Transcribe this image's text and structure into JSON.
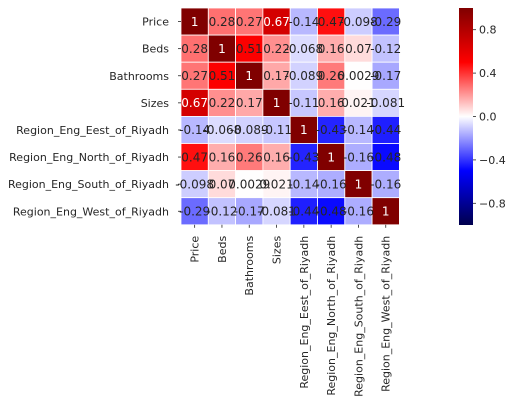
{
  "chart_data": {
    "type": "heatmap",
    "title": "",
    "xlabel": "",
    "ylabel": "",
    "rows": [
      "Price",
      "Beds",
      "Bathrooms",
      "Sizes",
      "Region_Eng_Eest_of_Riyadh",
      "Region_Eng_North_of_Riyadh",
      "Region_Eng_South_of_Riyadh",
      "Region_Eng_West_of_Riyadh"
    ],
    "columns": [
      "Price",
      "Beds",
      "Bathrooms",
      "Sizes",
      "Region_Eng_Eest_of_Riyadh",
      "Region_Eng_North_of_Riyadh",
      "Region_Eng_South_of_Riyadh",
      "Region_Eng_West_of_Riyadh"
    ],
    "values": [
      [
        1,
        0.28,
        0.27,
        0.67,
        -0.14,
        0.47,
        -0.098,
        -0.29
      ],
      [
        0.28,
        1,
        0.51,
        0.22,
        -0.068,
        0.16,
        0.07,
        -0.12
      ],
      [
        0.27,
        0.51,
        1,
        0.17,
        -0.089,
        0.26,
        0.0029,
        -0.17
      ],
      [
        0.67,
        0.22,
        0.17,
        1,
        -0.11,
        0.16,
        0.021,
        -0.081
      ],
      [
        -0.14,
        -0.068,
        -0.089,
        -0.11,
        1,
        -0.43,
        -0.14,
        -0.44
      ],
      [
        0.47,
        0.16,
        0.26,
        0.16,
        -0.43,
        1,
        -0.16,
        -0.48
      ],
      [
        -0.098,
        0.07,
        0.0029,
        0.021,
        -0.14,
        -0.16,
        1,
        -0.16
      ],
      [
        -0.29,
        -0.12,
        -0.17,
        -0.081,
        -0.44,
        -0.48,
        -0.16,
        1
      ]
    ],
    "annotations": [
      [
        "1",
        "0.28",
        "0.27",
        "0.67",
        "-0.14",
        "0.47",
        "-0.098",
        "-0.29"
      ],
      [
        "0.28",
        "1",
        "0.51",
        "0.22",
        "-0.068",
        "0.16",
        "0.07",
        "-0.12"
      ],
      [
        "0.27",
        "0.51",
        "1",
        "0.17",
        "-0.089",
        "0.26",
        "0.0029",
        "-0.17"
      ],
      [
        "0.67",
        "0.22",
        "0.17",
        "1",
        "-0.11",
        "0.16",
        "0.021",
        "-0.081"
      ],
      [
        "-0.14",
        "-0.068",
        "-0.089",
        "-0.11",
        "1",
        "-0.43",
        "-0.14",
        "-0.44"
      ],
      [
        "0.47",
        "0.16",
        "0.26",
        "0.16",
        "-0.43",
        "1",
        "-0.16",
        "-0.48"
      ],
      [
        "-0.098",
        "0.07",
        "0.0029",
        "0.021",
        "-0.14",
        "-0.16",
        "1",
        "-0.16"
      ],
      [
        "-0.29",
        "-0.12",
        "-0.17",
        "-0.081",
        "-0.44",
        "-0.48",
        "-0.16",
        "1"
      ]
    ],
    "colormap": "seismic",
    "vmin": -1,
    "vmax": 1,
    "colorbar": {
      "ticks": [
        0.8,
        0.4,
        0.0,
        -0.4,
        -0.8
      ],
      "tick_labels": [
        "0.8",
        "0.4",
        "0.0",
        "−0.4",
        "−0.8"
      ],
      "stops": [
        "#00004d",
        "#0000ff",
        "#ffffff",
        "#ff0000",
        "#800000"
      ]
    },
    "grid": false,
    "cell_border_color": "#ffffff"
  }
}
